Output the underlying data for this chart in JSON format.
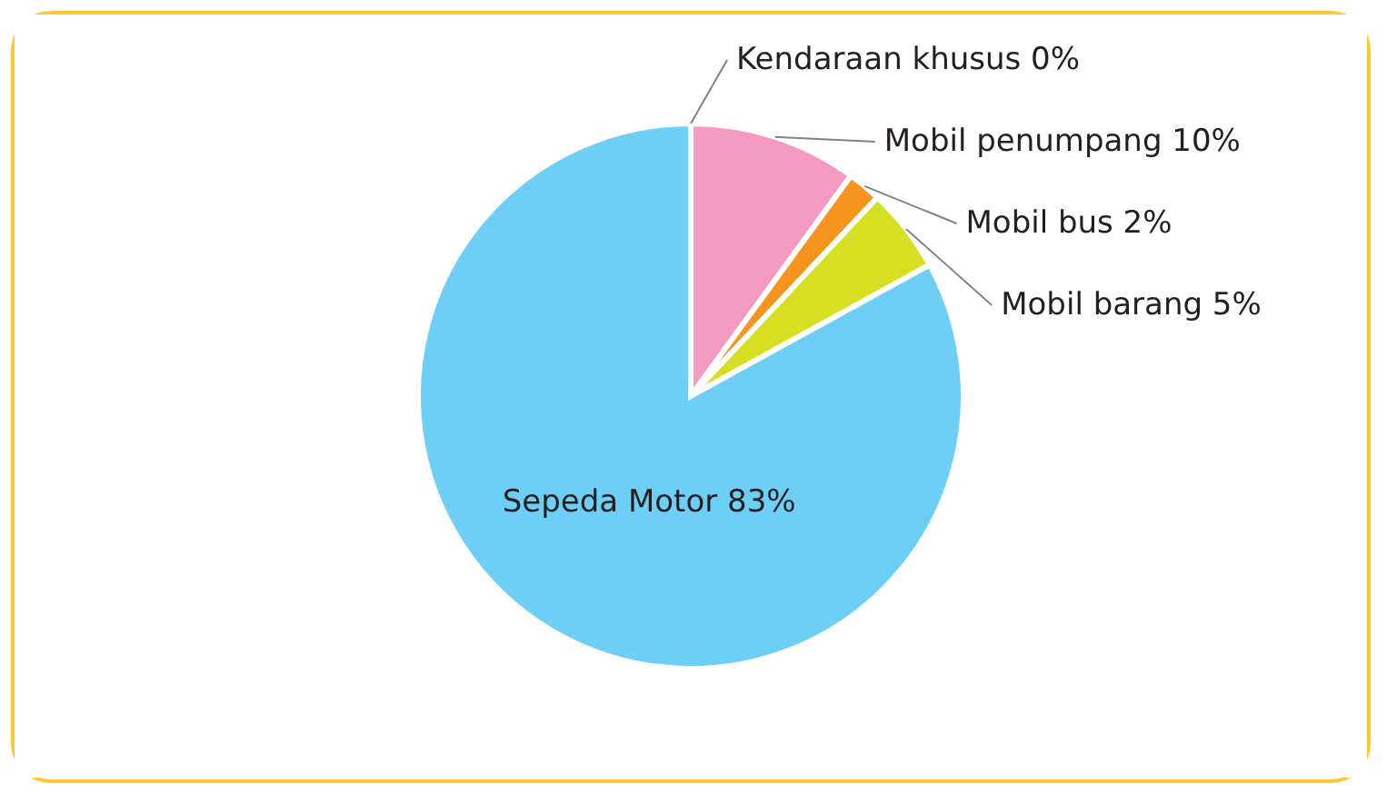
{
  "chart_data": {
    "type": "pie",
    "categories": [
      "Kendaraan khusus",
      "Mobil penumpang",
      "Mobil bus",
      "Mobil barang",
      "Sepeda Motor"
    ],
    "values": [
      0,
      10,
      2,
      5,
      83
    ],
    "colors": [
      "#231f20",
      "#f49ac1",
      "#f7941d",
      "#d7df23",
      "#6dcff6"
    ],
    "value_labels": [
      "0%",
      "10%",
      "2%",
      "5%",
      "83%"
    ]
  }
}
